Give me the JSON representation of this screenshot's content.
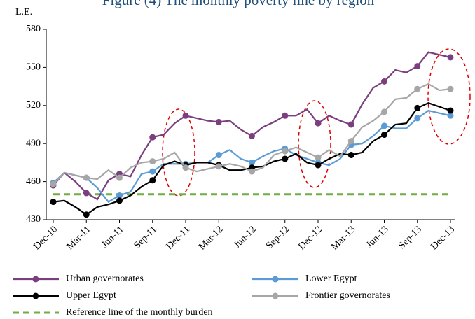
{
  "chart_data": {
    "type": "line",
    "title": "Figure (4) The monthly poverty line by region",
    "y_label": "L.E.",
    "categories": [
      "Dec-10",
      null,
      null,
      "Mar-11",
      null,
      null,
      "Jun-11",
      null,
      null,
      "Sep-11",
      null,
      null,
      "Dec-11",
      null,
      null,
      "Mar-12",
      null,
      null,
      "Jun-12",
      null,
      null,
      "Sep-12",
      null,
      null,
      "Dec-12",
      null,
      null,
      "Mar-13",
      null,
      null,
      "Jun-13",
      null,
      null,
      "Sep-13",
      null,
      null,
      "Dec-13"
    ],
    "series": [
      {
        "name": "Urban governorates",
        "color": "#7b3f7f",
        "values": [
          457,
          467,
          460,
          451,
          446,
          461,
          466,
          464,
          481,
          495,
          497,
          506,
          512,
          510,
          508,
          507,
          508,
          501,
          496,
          503,
          507,
          512,
          512,
          517,
          506,
          512,
          508,
          505,
          521,
          534,
          539,
          548,
          546,
          551,
          562,
          560,
          558
        ]
      },
      {
        "name": "Lower Egypt",
        "color": "#5b9bd5",
        "values": [
          459,
          467,
          465,
          463,
          455,
          444,
          449,
          452,
          466,
          468,
          474,
          474,
          474,
          475,
          475,
          481,
          485,
          478,
          475,
          480,
          484,
          486,
          481,
          478,
          475,
          473,
          478,
          489,
          490,
          496,
          504,
          502,
          502,
          510,
          516,
          514,
          512
        ]
      },
      {
        "name": "Upper Egypt",
        "color": "#000000",
        "values": [
          444,
          445,
          440,
          434,
          440,
          442,
          445,
          449,
          456,
          461,
          473,
          476,
          473,
          475,
          475,
          473,
          469,
          469,
          471,
          472,
          476,
          478,
          482,
          475,
          473,
          478,
          482,
          481,
          483,
          492,
          497,
          505,
          506,
          518,
          522,
          519,
          516
        ]
      },
      {
        "name": "Frontier governorates",
        "color": "#a6a6a6",
        "values": [
          458,
          467,
          465,
          463,
          462,
          469,
          463,
          471,
          475,
          476,
          478,
          483,
          471,
          468,
          470,
          472,
          474,
          472,
          468,
          471,
          481,
          484,
          487,
          483,
          479,
          485,
          480,
          492,
          503,
          508,
          515,
          525,
          526,
          533,
          537,
          532,
          533
        ]
      }
    ],
    "reference_line": {
      "name": "Reference line of the monthly burden",
      "value": 450,
      "color": "#70ad47"
    },
    "ylim": [
      430,
      580
    ],
    "yticks": [
      430,
      460,
      490,
      520,
      550,
      580
    ]
  }
}
